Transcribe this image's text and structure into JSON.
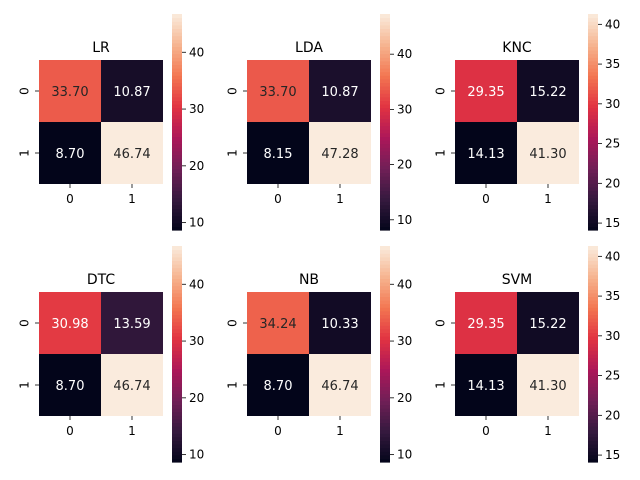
{
  "figure_title": "",
  "colormap": {
    "name": "rocket",
    "stops": [
      "#03051a",
      "#35193e",
      "#701f57",
      "#ad1759",
      "#e13342",
      "#f37651",
      "#f6b48f",
      "#faebdd"
    ]
  },
  "chart_data": [
    {
      "type": "heatmap",
      "title": "LR",
      "row_labels": [
        "0",
        "1"
      ],
      "col_labels": [
        "0",
        "1"
      ],
      "values": [
        [
          33.7,
          10.87
        ],
        [
          8.7,
          46.74
        ]
      ],
      "cell_labels": [
        [
          "33.70",
          "10.87"
        ],
        [
          "8.70",
          "46.74"
        ]
      ],
      "colorbar": {
        "vmin": 8.7,
        "vmax": 46.74,
        "ticks": [
          10,
          20,
          30,
          40
        ],
        "tick_labels": [
          "10",
          "20",
          "30",
          "40"
        ]
      }
    },
    {
      "type": "heatmap",
      "title": "LDA",
      "row_labels": [
        "0",
        "1"
      ],
      "col_labels": [
        "0",
        "1"
      ],
      "values": [
        [
          33.7,
          10.87
        ],
        [
          8.15,
          47.28
        ]
      ],
      "cell_labels": [
        [
          "33.70",
          "10.87"
        ],
        [
          "8.15",
          "47.28"
        ]
      ],
      "colorbar": {
        "vmin": 8.15,
        "vmax": 47.28,
        "ticks": [
          10,
          20,
          30,
          40
        ],
        "tick_labels": [
          "10",
          "20",
          "30",
          "40"
        ]
      }
    },
    {
      "type": "heatmap",
      "title": "KNC",
      "row_labels": [
        "0",
        "1"
      ],
      "col_labels": [
        "0",
        "1"
      ],
      "values": [
        [
          29.35,
          15.22
        ],
        [
          14.13,
          41.3
        ]
      ],
      "cell_labels": [
        [
          "29.35",
          "15.22"
        ],
        [
          "14.13",
          "41.30"
        ]
      ],
      "colorbar": {
        "vmin": 14.13,
        "vmax": 41.3,
        "ticks": [
          15,
          20,
          25,
          30,
          35,
          40
        ],
        "tick_labels": [
          "15",
          "20",
          "25",
          "30",
          "35",
          "40"
        ]
      }
    },
    {
      "type": "heatmap",
      "title": "DTC",
      "row_labels": [
        "0",
        "1"
      ],
      "col_labels": [
        "0",
        "1"
      ],
      "values": [
        [
          30.98,
          13.59
        ],
        [
          8.7,
          46.74
        ]
      ],
      "cell_labels": [
        [
          "30.98",
          "13.59"
        ],
        [
          "8.70",
          "46.74"
        ]
      ],
      "colorbar": {
        "vmin": 8.7,
        "vmax": 46.74,
        "ticks": [
          10,
          20,
          30,
          40
        ],
        "tick_labels": [
          "10",
          "20",
          "30",
          "40"
        ]
      }
    },
    {
      "type": "heatmap",
      "title": "NB",
      "row_labels": [
        "0",
        "1"
      ],
      "col_labels": [
        "0",
        "1"
      ],
      "values": [
        [
          34.24,
          10.33
        ],
        [
          8.7,
          46.74
        ]
      ],
      "cell_labels": [
        [
          "34.24",
          "10.33"
        ],
        [
          "8.70",
          "46.74"
        ]
      ],
      "colorbar": {
        "vmin": 8.7,
        "vmax": 46.74,
        "ticks": [
          10,
          20,
          30,
          40
        ],
        "tick_labels": [
          "10",
          "20",
          "30",
          "40"
        ]
      }
    },
    {
      "type": "heatmap",
      "title": "SVM",
      "row_labels": [
        "0",
        "1"
      ],
      "col_labels": [
        "0",
        "1"
      ],
      "values": [
        [
          29.35,
          15.22
        ],
        [
          14.13,
          41.3
        ]
      ],
      "cell_labels": [
        [
          "29.35",
          "15.22"
        ],
        [
          "14.13",
          "41.30"
        ]
      ],
      "colorbar": {
        "vmin": 14.13,
        "vmax": 41.3,
        "ticks": [
          15,
          20,
          25,
          30,
          35,
          40
        ],
        "tick_labels": [
          "15",
          "20",
          "25",
          "30",
          "35",
          "40"
        ]
      }
    }
  ]
}
